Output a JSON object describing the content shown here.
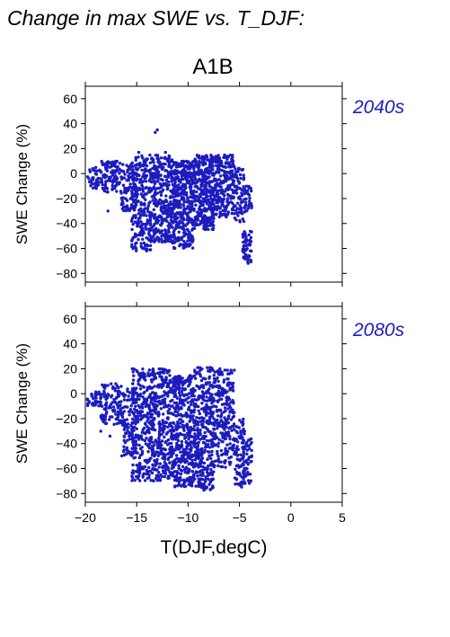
{
  "page": {
    "title": "Change in max SWE vs. T_DJF:",
    "scenario": "A1B",
    "xlabel": "T(DJF,degC)"
  },
  "colors": {
    "points": "#1c1cbe",
    "period_label": "#1c1cbe",
    "axes": "#000000"
  },
  "chart_data": [
    {
      "type": "scatter",
      "period": "2040s",
      "ylabel": "SWE Change (%)",
      "xlim": [
        -20,
        5
      ],
      "ylim": [
        -87,
        70
      ],
      "xticks": [
        -20,
        -15,
        -10,
        -5,
        0,
        5
      ],
      "yticks": [
        -80,
        -60,
        -40,
        -20,
        0,
        20,
        40,
        60
      ],
      "point_color": "#1c1cbe",
      "clusters": [
        {
          "x": [
            -19.8,
            -18.5
          ],
          "y": [
            -12,
            5
          ],
          "n": 40
        },
        {
          "x": [
            -18.5,
            -16.5
          ],
          "y": [
            -15,
            10
          ],
          "n": 110
        },
        {
          "x": [
            -16.5,
            -15.0
          ],
          "y": [
            -30,
            8
          ],
          "n": 100
        },
        {
          "x": [
            -15.5,
            -13.5
          ],
          "y": [
            -62,
            15
          ],
          "n": 260
        },
        {
          "x": [
            -13.5,
            -11.5
          ],
          "y": [
            -55,
            15
          ],
          "n": 320
        },
        {
          "x": [
            -11.5,
            -9.5
          ],
          "y": [
            -60,
            10
          ],
          "n": 380
        },
        {
          "x": [
            -9.5,
            -7.5
          ],
          "y": [
            -45,
            15
          ],
          "n": 340
        },
        {
          "x": [
            -7.5,
            -5.5
          ],
          "y": [
            -35,
            15
          ],
          "n": 240
        },
        {
          "x": [
            -5.5,
            -4.5
          ],
          "y": [
            -40,
            5
          ],
          "n": 70
        },
        {
          "x": [
            -4.7,
            -3.8
          ],
          "y": [
            -72,
            -45
          ],
          "n": 60
        },
        {
          "x": [
            -4.5,
            -3.8
          ],
          "y": [
            -30,
            -10
          ],
          "n": 30
        }
      ],
      "outliers": [
        [
          -13.0,
          35
        ],
        [
          -13.2,
          33
        ],
        [
          -17.8,
          -30
        ],
        [
          -14.8,
          17
        ],
        [
          -12.2,
          17
        ]
      ]
    },
    {
      "type": "scatter",
      "period": "2080s",
      "ylabel": "SWE Change (%)",
      "xlim": [
        -20,
        5
      ],
      "ylim": [
        -87,
        70
      ],
      "xticks": [
        -20,
        -15,
        -10,
        -5,
        0,
        5
      ],
      "yticks": [
        -80,
        -60,
        -40,
        -20,
        0,
        20,
        40,
        60
      ],
      "point_color": "#1c1cbe",
      "clusters": [
        {
          "x": [
            -19.8,
            -18.5
          ],
          "y": [
            -10,
            2
          ],
          "n": 40
        },
        {
          "x": [
            -18.5,
            -16.5
          ],
          "y": [
            -25,
            8
          ],
          "n": 110
        },
        {
          "x": [
            -16.5,
            -15.0
          ],
          "y": [
            -50,
            5
          ],
          "n": 110
        },
        {
          "x": [
            -15.5,
            -13.5
          ],
          "y": [
            -70,
            20
          ],
          "n": 280
        },
        {
          "x": [
            -13.5,
            -11.5
          ],
          "y": [
            -70,
            20
          ],
          "n": 340
        },
        {
          "x": [
            -11.5,
            -9.5
          ],
          "y": [
            -75,
            15
          ],
          "n": 380
        },
        {
          "x": [
            -9.5,
            -7.5
          ],
          "y": [
            -78,
            22
          ],
          "n": 360
        },
        {
          "x": [
            -7.5,
            -5.5
          ],
          "y": [
            -60,
            20
          ],
          "n": 260
        },
        {
          "x": [
            -5.5,
            -4.5
          ],
          "y": [
            -75,
            -20
          ],
          "n": 80
        },
        {
          "x": [
            -4.7,
            -3.8
          ],
          "y": [
            -72,
            -35
          ],
          "n": 60
        }
      ],
      "outliers": [
        [
          -18.5,
          -30
        ],
        [
          -17.6,
          -34
        ],
        [
          -16.8,
          -18
        ]
      ]
    }
  ]
}
